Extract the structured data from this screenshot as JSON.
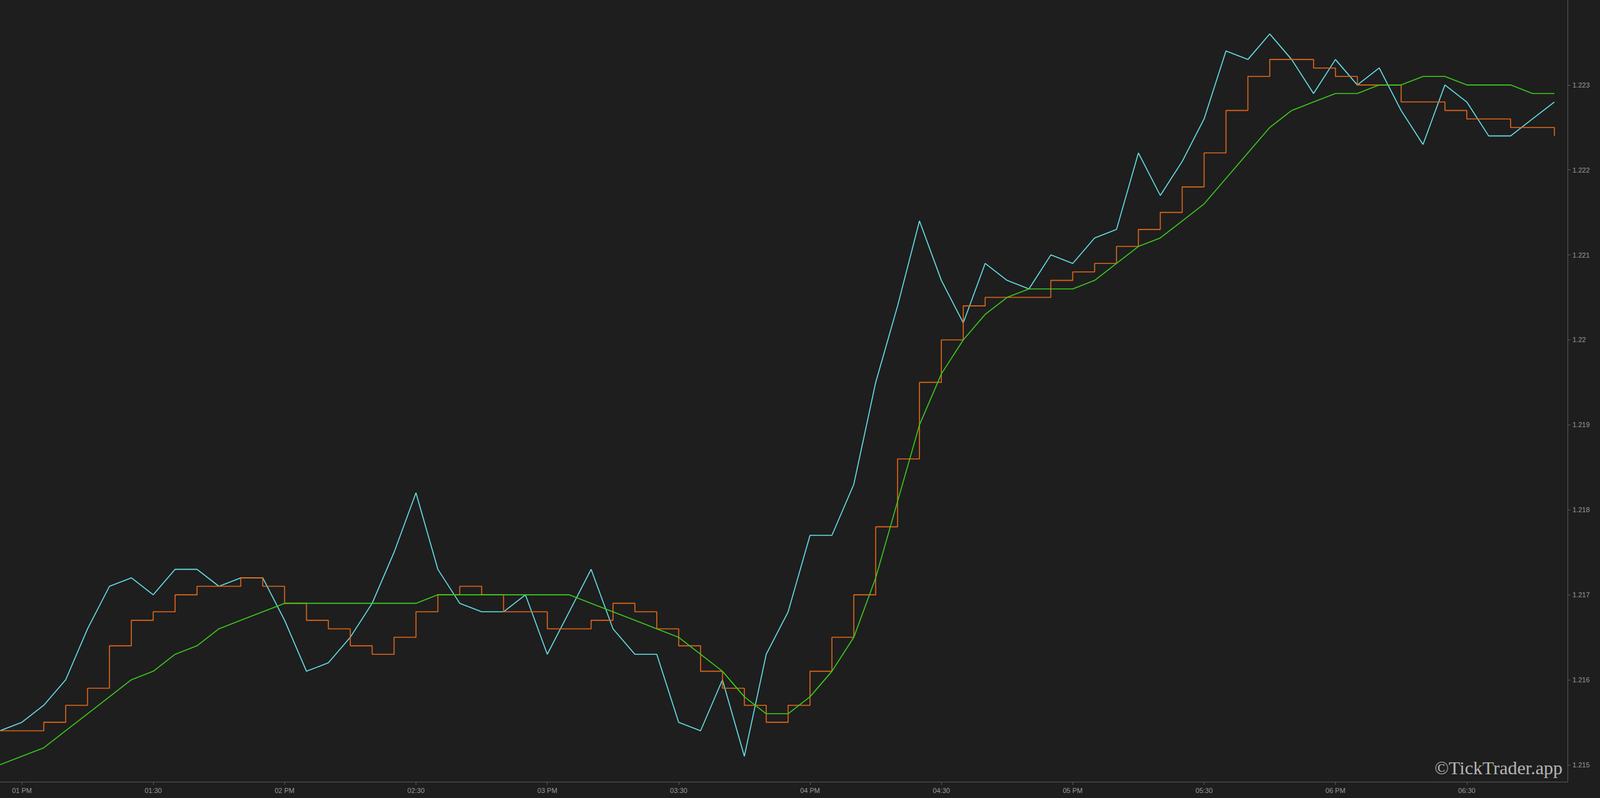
{
  "chart_data": {
    "type": "line",
    "grid": false,
    "annotations": [
      "©TickTrader.app"
    ],
    "x": [
      775,
      780,
      785,
      790,
      795,
      800,
      805,
      810,
      815,
      820,
      825,
      830,
      835,
      840,
      845,
      850,
      855,
      860,
      865,
      870,
      875,
      880,
      885,
      890,
      895,
      900,
      905,
      910,
      915,
      920,
      925,
      930,
      935,
      940,
      945,
      950,
      955,
      960,
      965,
      970,
      975,
      980,
      985,
      990,
      995,
      1000,
      1005,
      1010,
      1015,
      1020,
      1025,
      1030,
      1035,
      1040,
      1045,
      1050,
      1055,
      1060,
      1065,
      1070,
      1075,
      1080,
      1085,
      1090,
      1095,
      1100,
      1105,
      1110,
      1115,
      1120,
      1125,
      1130
    ],
    "xlim": [
      775,
      1133
    ],
    "xticks": [
      {
        "value": 780,
        "label": "01 PM"
      },
      {
        "value": 810,
        "label": "01:30"
      },
      {
        "value": 840,
        "label": "02 PM"
      },
      {
        "value": 870,
        "label": "02:30"
      },
      {
        "value": 900,
        "label": "03 PM"
      },
      {
        "value": 930,
        "label": "03:30"
      },
      {
        "value": 960,
        "label": "04 PM"
      },
      {
        "value": 990,
        "label": "04:30"
      },
      {
        "value": 1020,
        "label": "05 PM"
      },
      {
        "value": 1050,
        "label": "05:30"
      },
      {
        "value": 1080,
        "label": "06 PM"
      },
      {
        "value": 1110,
        "label": "06:30"
      }
    ],
    "ylim": [
      1.2148,
      1.224
    ],
    "yticks": [
      1.215,
      1.216,
      1.217,
      1.218,
      1.219,
      1.22,
      1.221,
      1.222,
      1.223
    ],
    "series": [
      {
        "color": "#66e0e8",
        "type": "line",
        "values": [
          1.2154,
          1.2155,
          1.2157,
          1.216,
          1.2166,
          1.2171,
          1.2172,
          1.217,
          1.2173,
          1.2173,
          1.2171,
          1.2172,
          1.2172,
          1.2167,
          1.2161,
          1.2162,
          1.2165,
          1.2169,
          1.2175,
          1.2182,
          1.2173,
          1.2169,
          1.2168,
          1.2168,
          1.217,
          1.2163,
          1.2168,
          1.2173,
          1.2166,
          1.2163,
          1.2163,
          1.2155,
          1.2154,
          1.216,
          1.2151,
          1.2163,
          1.2168,
          1.2177,
          1.2177,
          1.2183,
          1.2195,
          1.2204,
          1.2214,
          1.2207,
          1.2202,
          1.2209,
          1.2207,
          1.2206,
          1.221,
          1.2209,
          1.2212,
          1.2213,
          1.2222,
          1.2217,
          1.2221,
          1.2226,
          1.2234,
          1.2233,
          1.2236,
          1.2233,
          1.2229,
          1.2233,
          1.223,
          1.2232,
          1.2227,
          1.2223,
          1.223,
          1.2228,
          1.2224,
          1.2224,
          1.2226,
          1.2228
        ]
      },
      {
        "color": "#e0661a",
        "type": "step",
        "values": [
          1.2154,
          1.2154,
          1.2155,
          1.2157,
          1.2159,
          1.2164,
          1.2167,
          1.2168,
          1.217,
          1.2171,
          1.2171,
          1.2172,
          1.2171,
          1.2169,
          1.2167,
          1.2166,
          1.2164,
          1.2163,
          1.2165,
          1.2168,
          1.217,
          1.2171,
          1.217,
          1.2168,
          1.2168,
          1.2166,
          1.2166,
          1.2167,
          1.2169,
          1.2168,
          1.2166,
          1.2164,
          1.2161,
          1.2159,
          1.2157,
          1.2155,
          1.2157,
          1.2161,
          1.2165,
          1.217,
          1.2178,
          1.2186,
          1.2195,
          1.22,
          1.2204,
          1.2205,
          1.2205,
          1.2205,
          1.2207,
          1.2208,
          1.2209,
          1.2211,
          1.2213,
          1.2215,
          1.2218,
          1.2222,
          1.2227,
          1.2231,
          1.2233,
          1.2233,
          1.2232,
          1.2231,
          1.223,
          1.223,
          1.2228,
          1.2228,
          1.2227,
          1.2226,
          1.2226,
          1.2225,
          1.2225,
          1.2224
        ]
      },
      {
        "color": "#3ccc1e",
        "type": "line",
        "values": [
          1.215,
          1.2151,
          1.2152,
          1.2154,
          1.2156,
          1.2158,
          1.216,
          1.2161,
          1.2163,
          1.2164,
          1.2166,
          1.2167,
          1.2168,
          1.2169,
          1.2169,
          1.2169,
          1.2169,
          1.2169,
          1.2169,
          1.2169,
          1.217,
          1.217,
          1.217,
          1.217,
          1.217,
          1.217,
          1.217,
          1.2169,
          1.2168,
          1.2167,
          1.2166,
          1.2165,
          1.2163,
          1.2161,
          1.2158,
          1.2156,
          1.2156,
          1.2158,
          1.2161,
          1.2165,
          1.2172,
          1.2181,
          1.219,
          1.2196,
          1.22,
          1.2203,
          1.2205,
          1.2206,
          1.2206,
          1.2206,
          1.2207,
          1.2209,
          1.2211,
          1.2212,
          1.2214,
          1.2216,
          1.2219,
          1.2222,
          1.2225,
          1.2227,
          1.2228,
          1.2229,
          1.2229,
          1.223,
          1.223,
          1.2231,
          1.2231,
          1.223,
          1.223,
          1.223,
          1.2229,
          1.2229
        ]
      }
    ]
  }
}
